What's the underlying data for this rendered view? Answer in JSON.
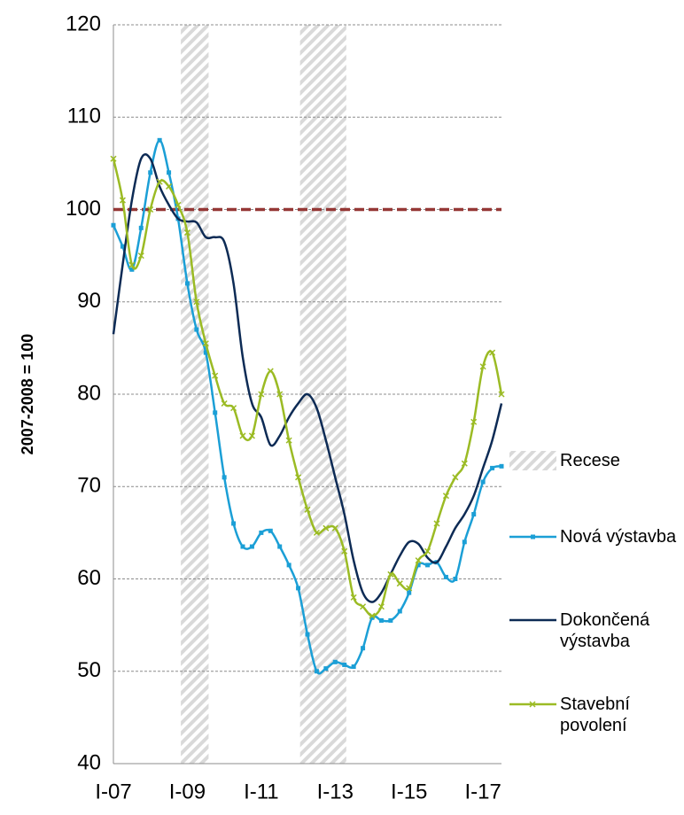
{
  "chart_data": {
    "type": "line",
    "y_label": "2007-2008 = 100",
    "categories": [
      "I-07",
      null,
      null,
      null,
      null,
      null,
      null,
      null,
      "I-09",
      null,
      null,
      null,
      null,
      null,
      null,
      null,
      "I-11",
      null,
      null,
      null,
      null,
      null,
      null,
      null,
      "I-13",
      null,
      null,
      null,
      null,
      null,
      null,
      null,
      "I-15",
      null,
      null,
      null,
      null,
      null,
      null,
      null,
      "I-17",
      null,
      null
    ],
    "ylim": [
      40,
      120
    ],
    "yticks": [
      40,
      50,
      60,
      70,
      80,
      90,
      100,
      110,
      120
    ],
    "grid": true,
    "reference_line": {
      "value": 100,
      "color": "#953735"
    },
    "recession": {
      "name": "Recese",
      "spans": [
        [
          7.3,
          10.3
        ],
        [
          20.2,
          25.2
        ]
      ]
    },
    "series": [
      {
        "name": "Nová výstavba",
        "color": "#1b9fd6",
        "marker": "square",
        "values": [
          98.3,
          96,
          93.5,
          98,
          104,
          107.5,
          104,
          99,
          92,
          87,
          84.5,
          78,
          71,
          66,
          63.5,
          63.5,
          65,
          65.2,
          63.5,
          61.5,
          59,
          54,
          50,
          50.3,
          51,
          50.7,
          50.5,
          52.5,
          55.8,
          55.5,
          55.5,
          56.5,
          58.5,
          61.5,
          61.5,
          61.8,
          60.2,
          60,
          64,
          67,
          70.5,
          72,
          72.2
        ]
      },
      {
        "name": "Dokončená výstavba",
        "color": "#0d2b55",
        "marker": "none",
        "values": [
          86.5,
          94,
          101,
          105.5,
          105.5,
          102.5,
          100.5,
          99,
          98.7,
          98.6,
          97,
          97,
          96.5,
          92,
          84,
          79,
          77.5,
          74.5,
          75.5,
          77.5,
          79,
          80,
          78.5,
          75,
          71,
          67,
          62,
          58.5,
          57.5,
          58.5,
          60.5,
          62.5,
          64,
          63.8,
          62.3,
          61.8,
          63.5,
          65.5,
          67,
          69,
          72,
          75,
          79
        ]
      },
      {
        "name": "Stavební povolení",
        "color": "#9bbb24",
        "marker": "x",
        "values": [
          105.5,
          101,
          94,
          95,
          100,
          103,
          102.5,
          100.5,
          97.5,
          90,
          85.5,
          82,
          79,
          78.5,
          75.5,
          75.5,
          80,
          82.5,
          80,
          75,
          71,
          67.5,
          65,
          65.5,
          65.5,
          63,
          58,
          57,
          56,
          57,
          60.5,
          59.5,
          59,
          62,
          63,
          66,
          69,
          71,
          72.5,
          77,
          83,
          84.5,
          80
        ]
      }
    ]
  }
}
